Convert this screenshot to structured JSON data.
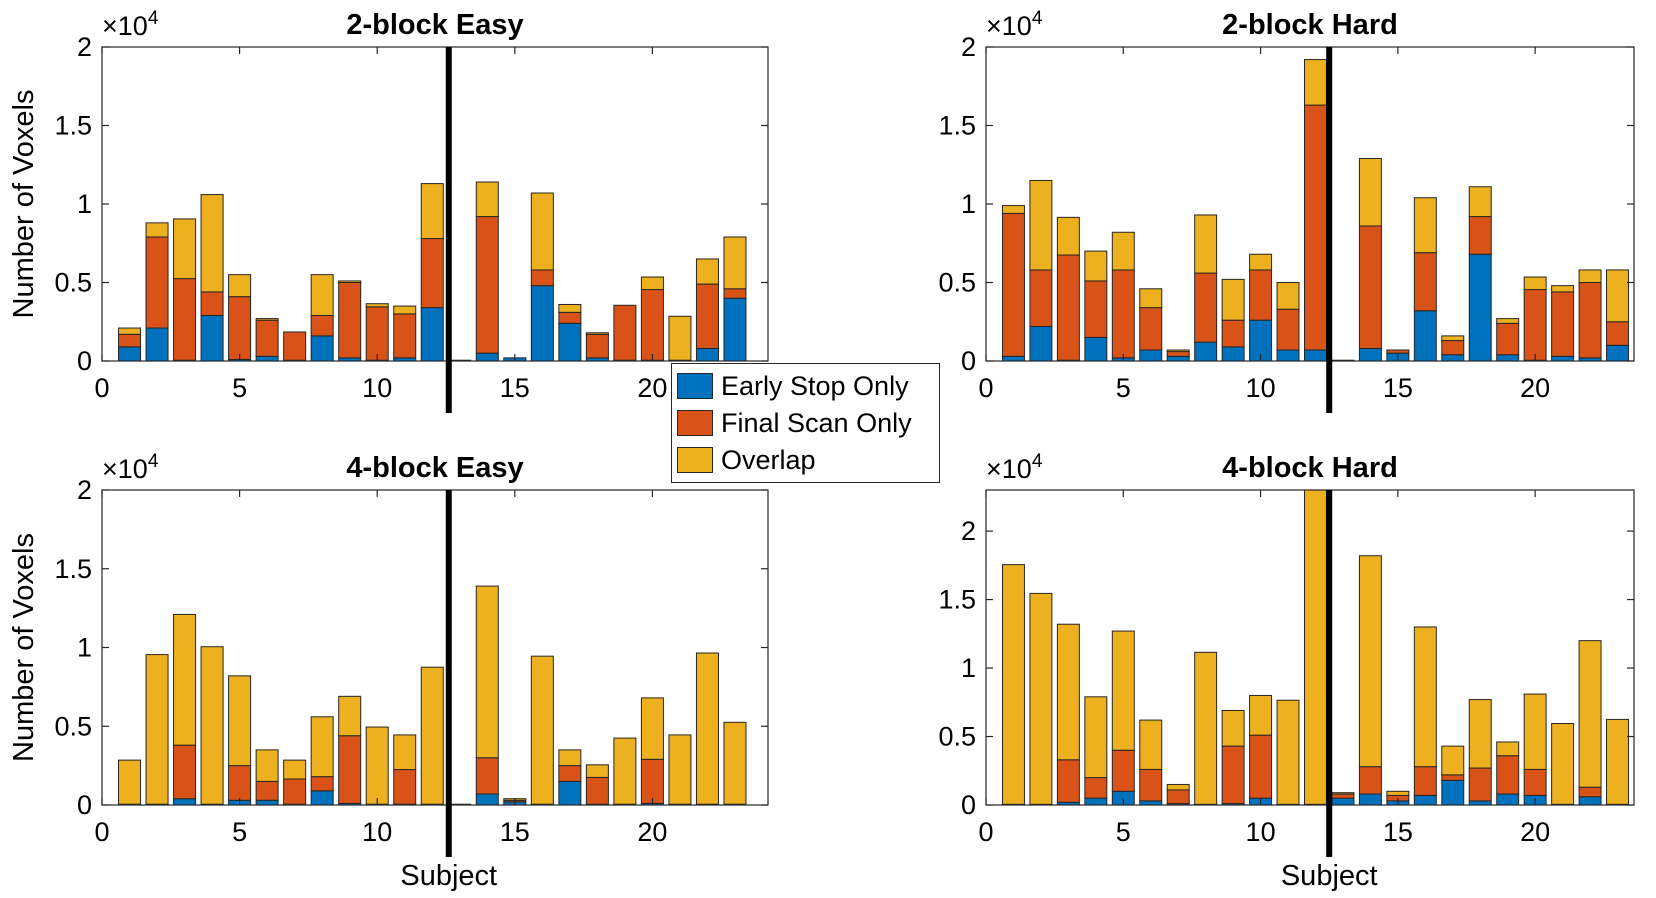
{
  "colors": {
    "early": "#0072BD",
    "final": "#D95319",
    "overlap": "#EDB120",
    "axis": "#262626",
    "divider": "#000000"
  },
  "legend": {
    "items": [
      {
        "key": "early",
        "label": "Early Stop Only"
      },
      {
        "key": "final",
        "label": "Final Scan Only"
      },
      {
        "key": "overlap",
        "label": "Overlap"
      }
    ]
  },
  "chart_data": [
    {
      "type": "bar",
      "stacked": true,
      "title": "2-block Easy",
      "xlabel": "",
      "ylabel": "Number of Voxels",
      "exponent_label": "×10",
      "exponent_power": "4",
      "xlim": [
        0,
        24.2
      ],
      "ylim": [
        0,
        2
      ],
      "xticks": [
        0,
        5,
        10,
        15,
        20
      ],
      "xtick_labels": [
        "0",
        "5",
        "10",
        "15",
        "20"
      ],
      "yticks": [
        0,
        0.5,
        1,
        1.5,
        2
      ],
      "ytick_labels": [
        "0",
        "0.5",
        "1",
        "1.5",
        "2"
      ],
      "divider_x": 12.6,
      "categories": [
        1,
        2,
        3,
        4,
        5,
        6,
        7,
        8,
        9,
        10,
        11,
        12,
        13,
        14,
        15,
        16,
        17,
        18,
        19,
        20,
        21,
        22,
        23
      ],
      "series": [
        {
          "name": "Early Stop Only",
          "values": [
            0.09,
            0.21,
            0.005,
            0.29,
            0.01,
            0.03,
            0.005,
            0.16,
            0.02,
            0.005,
            0.02,
            0.34,
            0.005,
            0.05,
            0.02,
            0.48,
            0.24,
            0.02,
            0.005,
            0.005,
            0.005,
            0.08,
            0.4
          ]
        },
        {
          "name": "Final Scan Only",
          "values": [
            0.08,
            0.58,
            0.52,
            0.15,
            0.4,
            0.23,
            0.18,
            0.13,
            0.48,
            0.34,
            0.28,
            0.44,
            0,
            0.87,
            0,
            0.1,
            0.07,
            0.15,
            0.35,
            0.45,
            0,
            0.41,
            0.06
          ]
        },
        {
          "name": "Overlap",
          "values": [
            0.04,
            0.09,
            0.38,
            0.62,
            0.14,
            0.01,
            0,
            0.26,
            0.01,
            0.02,
            0.05,
            0.35,
            0,
            0.22,
            0,
            0.49,
            0.05,
            0.01,
            0,
            0.08,
            0.28,
            0.16,
            0.33
          ]
        }
      ]
    },
    {
      "type": "bar",
      "stacked": true,
      "title": "2-block Hard",
      "xlabel": "",
      "ylabel": "",
      "exponent_label": "×10",
      "exponent_power": "4",
      "xlim": [
        0,
        23.6
      ],
      "ylim": [
        0,
        2
      ],
      "xticks": [
        0,
        5,
        10,
        15,
        20
      ],
      "xtick_labels": [
        "0",
        "5",
        "10",
        "15",
        "20"
      ],
      "yticks": [
        0,
        0.5,
        1,
        1.5,
        2
      ],
      "ytick_labels": [
        "0",
        "0.5",
        "1",
        "1.5",
        "2"
      ],
      "divider_x": 12.5,
      "categories": [
        1,
        2,
        3,
        4,
        5,
        6,
        7,
        8,
        9,
        10,
        11,
        12,
        13,
        14,
        15,
        16,
        17,
        18,
        19,
        20,
        21,
        22,
        23
      ],
      "series": [
        {
          "name": "Early Stop Only",
          "values": [
            0.03,
            0.22,
            0.005,
            0.15,
            0.02,
            0.07,
            0.03,
            0.12,
            0.09,
            0.26,
            0.07,
            0.07,
            0.005,
            0.08,
            0.05,
            0.32,
            0.04,
            0.68,
            0.04,
            0.005,
            0.03,
            0.02,
            0.1
          ]
        },
        {
          "name": "Final Scan Only",
          "values": [
            0.91,
            0.36,
            0.67,
            0.36,
            0.56,
            0.27,
            0.03,
            0.44,
            0.17,
            0.32,
            0.26,
            1.56,
            0,
            0.78,
            0.02,
            0.37,
            0.09,
            0.24,
            0.2,
            0.45,
            0.41,
            0.48,
            0.15
          ]
        },
        {
          "name": "Overlap",
          "values": [
            0.05,
            0.57,
            0.24,
            0.19,
            0.24,
            0.12,
            0.01,
            0.37,
            0.26,
            0.1,
            0.17,
            0.29,
            0,
            0.43,
            0,
            0.35,
            0.03,
            0.19,
            0.03,
            0.08,
            0.04,
            0.08,
            0.33
          ]
        }
      ]
    },
    {
      "type": "bar",
      "stacked": true,
      "title": "4-block Easy",
      "xlabel": "Subject",
      "ylabel": "Number of Voxels",
      "exponent_label": "×10",
      "exponent_power": "4",
      "xlim": [
        0,
        24.2
      ],
      "ylim": [
        0,
        2
      ],
      "xticks": [
        0,
        5,
        10,
        15,
        20
      ],
      "xtick_labels": [
        "0",
        "5",
        "10",
        "15",
        "20"
      ],
      "yticks": [
        0,
        0.5,
        1,
        1.5,
        2
      ],
      "ytick_labels": [
        "0",
        "0.5",
        "1",
        "1.5",
        "2"
      ],
      "divider_x": 12.6,
      "categories": [
        1,
        2,
        3,
        4,
        5,
        6,
        7,
        8,
        9,
        10,
        11,
        12,
        13,
        14,
        15,
        16,
        17,
        18,
        19,
        20,
        21,
        22,
        23
      ],
      "series": [
        {
          "name": "Early Stop Only",
          "values": [
            0.005,
            0.005,
            0.04,
            0.005,
            0.03,
            0.03,
            0.005,
            0.09,
            0.01,
            0.005,
            0.005,
            0.005,
            0.005,
            0.07,
            0.02,
            0.005,
            0.15,
            0.005,
            0.005,
            0.01,
            0.005,
            0.005,
            0.005
          ]
        },
        {
          "name": "Final Scan Only",
          "values": [
            0,
            0,
            0.34,
            0,
            0.22,
            0.12,
            0.16,
            0.09,
            0.43,
            0,
            0.22,
            0,
            0,
            0.23,
            0.01,
            0,
            0.1,
            0.17,
            0,
            0.28,
            0,
            0,
            0
          ]
        },
        {
          "name": "Overlap",
          "values": [
            0.28,
            0.95,
            0.83,
            1.0,
            0.57,
            0.2,
            0.12,
            0.38,
            0.25,
            0.49,
            0.22,
            0.87,
            0,
            1.09,
            0.01,
            0.94,
            0.1,
            0.08,
            0.42,
            0.39,
            0.44,
            0.96,
            0.52
          ]
        }
      ]
    },
    {
      "type": "bar",
      "stacked": true,
      "title": "4-block Hard",
      "xlabel": "Subject",
      "ylabel": "",
      "exponent_label": "×10",
      "exponent_power": "4",
      "xlim": [
        0,
        23.6
      ],
      "ylim": [
        0,
        2.3
      ],
      "xticks": [
        0,
        5,
        10,
        15,
        20
      ],
      "xtick_labels": [
        "0",
        "5",
        "10",
        "15",
        "20"
      ],
      "yticks": [
        0,
        0.5,
        1,
        1.5,
        2
      ],
      "ytick_labels": [
        "0",
        "0.5",
        "1",
        "1.5",
        "2"
      ],
      "divider_x": 12.5,
      "categories": [
        1,
        2,
        3,
        4,
        5,
        6,
        7,
        8,
        9,
        10,
        11,
        12,
        13,
        14,
        15,
        16,
        17,
        18,
        19,
        20,
        21,
        22,
        23
      ],
      "series": [
        {
          "name": "Early Stop Only",
          "values": [
            0.005,
            0.005,
            0.02,
            0.05,
            0.1,
            0.03,
            0.01,
            0.005,
            0.01,
            0.05,
            0.005,
            0.005,
            0.05,
            0.08,
            0.03,
            0.07,
            0.18,
            0.03,
            0.08,
            0.07,
            0.005,
            0.06,
            0.005
          ]
        },
        {
          "name": "Final Scan Only",
          "values": [
            0,
            0,
            0.31,
            0.15,
            0.3,
            0.23,
            0.1,
            0,
            0.42,
            0.46,
            0,
            0,
            0.03,
            0.2,
            0.04,
            0.21,
            0.04,
            0.24,
            0.28,
            0.19,
            0,
            0.07,
            0
          ]
        },
        {
          "name": "Overlap",
          "values": [
            1.75,
            1.54,
            0.99,
            0.59,
            0.87,
            0.36,
            0.04,
            1.11,
            0.26,
            0.29,
            0.76,
            2.3,
            0.01,
            1.54,
            0.03,
            1.02,
            0.21,
            0.5,
            0.1,
            0.55,
            0.59,
            1.07,
            0.62
          ]
        }
      ]
    }
  ]
}
